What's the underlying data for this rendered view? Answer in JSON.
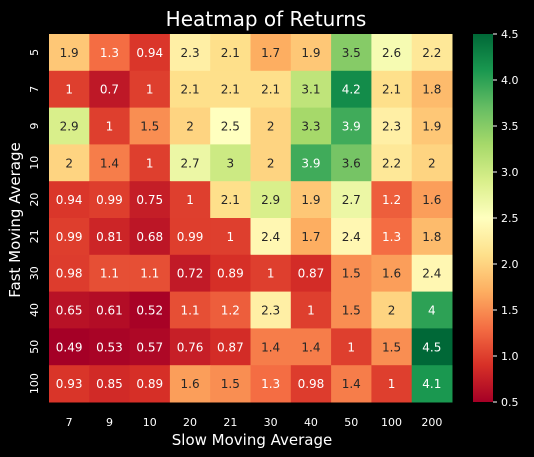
{
  "chart_data": {
    "type": "heatmap",
    "title": "Heatmap of Returns",
    "xlabel": "Slow Moving Average",
    "ylabel": "Fast Moving Average",
    "x_categories": [
      "7",
      "9",
      "10",
      "20",
      "21",
      "30",
      "40",
      "50",
      "100",
      "200"
    ],
    "y_categories": [
      "5",
      "7",
      "9",
      "10",
      "20",
      "21",
      "30",
      "40",
      "50",
      "100"
    ],
    "values": [
      [
        1.9,
        1.3,
        0.94,
        2.3,
        2.1,
        1.7,
        1.9,
        3.5,
        2.6,
        2.2
      ],
      [
        1,
        0.7,
        1,
        2.1,
        2.1,
        2.1,
        3.1,
        4.2,
        2.1,
        1.8
      ],
      [
        2.9,
        1,
        1.5,
        2,
        2.5,
        2,
        3.3,
        3.9,
        2.3,
        1.9
      ],
      [
        2,
        1.4,
        1,
        2.7,
        3,
        2,
        3.9,
        3.6,
        2.2,
        2
      ],
      [
        0.94,
        0.99,
        0.75,
        1,
        2.1,
        2.9,
        1.9,
        2.7,
        1.2,
        1.6
      ],
      [
        0.99,
        0.81,
        0.68,
        0.99,
        1,
        2.4,
        1.7,
        2.4,
        1.3,
        1.8
      ],
      [
        0.98,
        1.1,
        1.1,
        0.72,
        0.89,
        1,
        0.87,
        1.5,
        1.6,
        2.4
      ],
      [
        0.65,
        0.61,
        0.52,
        1.1,
        1.2,
        2.3,
        1,
        1.5,
        2,
        4
      ],
      [
        0.49,
        0.53,
        0.57,
        0.76,
        0.87,
        1.4,
        1.4,
        1,
        1.5,
        4.5
      ],
      [
        0.93,
        0.85,
        0.89,
        1.6,
        1.5,
        1.3,
        0.98,
        1.4,
        1,
        4.1
      ]
    ],
    "colorbar": {
      "range": [
        0.5,
        4.5
      ],
      "ticks": [
        "0.5",
        "1.0",
        "1.5",
        "2.0",
        "2.5",
        "3.0",
        "3.5",
        "4.0",
        "4.5"
      ],
      "colormap": "RdYlGn"
    },
    "colors": {
      "background": "#000000",
      "text": "#ffffff",
      "low": "#a50026",
      "mid": "#ffffbf",
      "high": "#006837"
    },
    "grid": false,
    "legend": "colorbar-right"
  }
}
